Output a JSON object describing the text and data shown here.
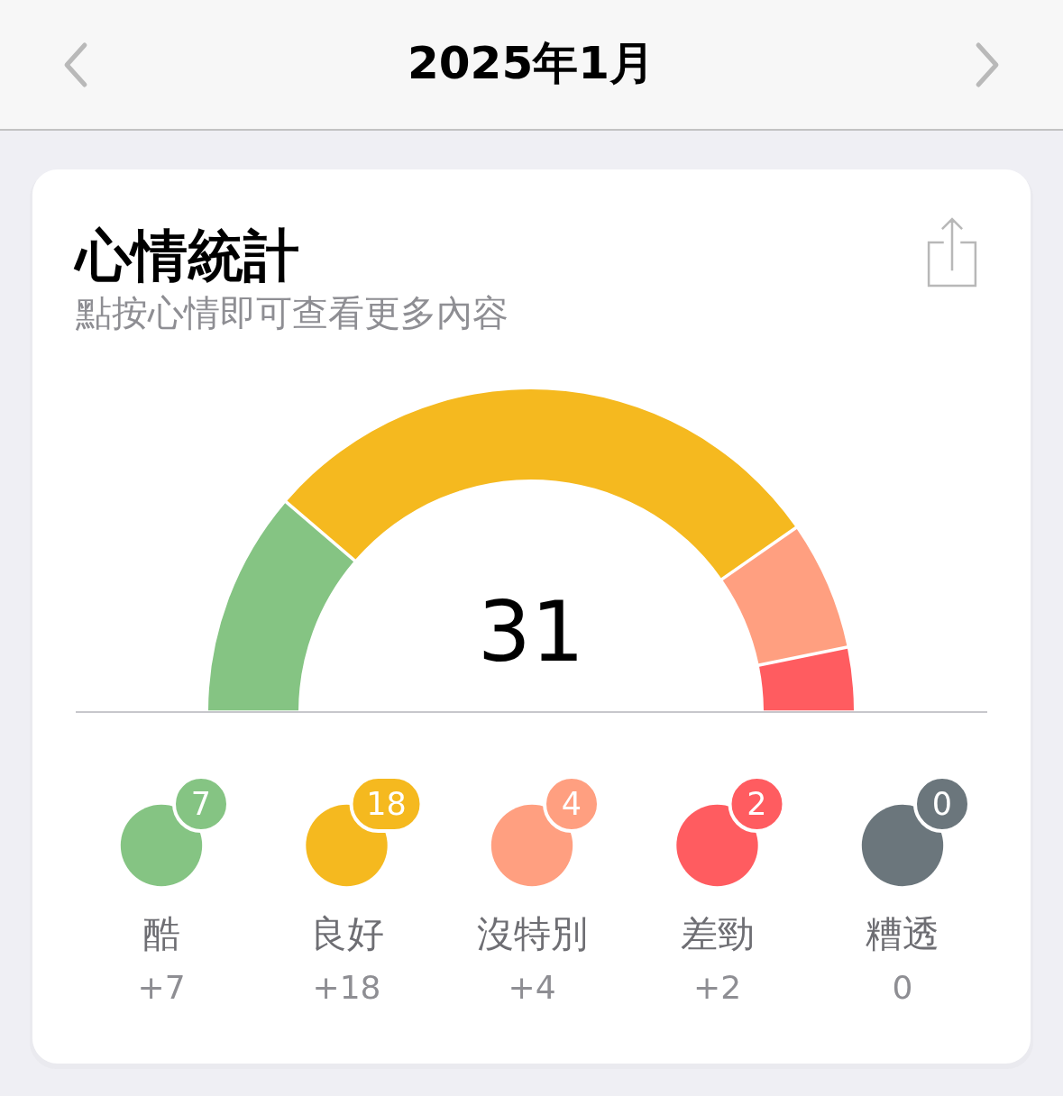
{
  "chart_data": {
    "type": "donut",
    "title": "心情統計",
    "subtitle": "點按心情即可查看更多內容",
    "annotations": [
      "2025年1月",
      "31",
      "7",
      "18",
      "4",
      "2",
      "0"
    ],
    "categories": [
      "酷",
      "良好",
      "沒特別",
      "差勁",
      "糟透"
    ],
    "values": [
      7,
      18,
      4,
      2,
      0
    ],
    "colors": [
      "#85c483",
      "#f5b91f",
      "#ff9f80",
      "#ff5c60",
      "#6b767c"
    ],
    "value_labels": [
      "+7",
      "+18",
      "+4",
      "+2",
      "0"
    ],
    "legend": "bottom"
  }
}
